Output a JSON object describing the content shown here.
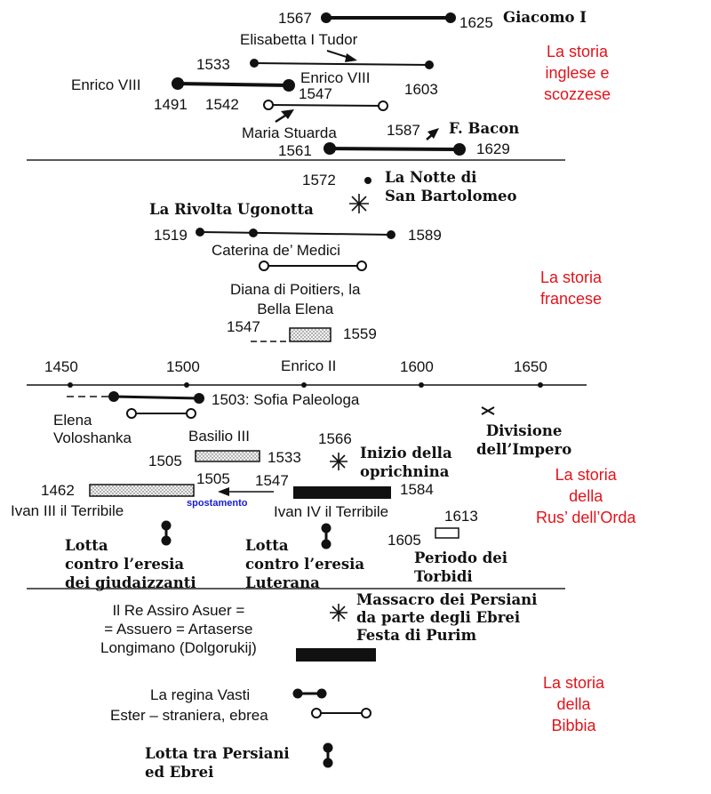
{
  "sections": {
    "english": "La storia\ninglese e\nscozzese",
    "french": "La storia\nfrancese",
    "rus": "La storia\ndella\nRus’ dell’Orda",
    "bible": "La storia\ndella\nBibbia"
  },
  "english": {
    "giacomo": {
      "start": "1567",
      "end": "1625",
      "name": "Giacomo I"
    },
    "elisabetta": {
      "name": "Elisabetta I Tudor",
      "start": "1533",
      "end": "1603"
    },
    "enrico": {
      "name_left": "Enrico VIII",
      "name_right": "Enrico VIII",
      "start": "1491",
      "end": "1547"
    },
    "maria": {
      "start": "1542",
      "name": "Maria Stuarda"
    },
    "bacon": {
      "year": "1587",
      "name": "F. Bacon",
      "start": "1561",
      "end": "1629"
    }
  },
  "french": {
    "notte": {
      "year": "1572",
      "name": "La Notte di\nSan Bartolomeo"
    },
    "rivolta": "La Rivolta Ugonotta",
    "caterina": {
      "start": "1519",
      "end": "1589",
      "name": "Caterina de’ Medici"
    },
    "diana": "Diana di Poitiers, la\nBella Elena",
    "enrico2": {
      "start": "1547",
      "end": "1559",
      "name": "Enrico II"
    }
  },
  "axis": {
    "ticks": [
      "1450",
      "1500",
      "1600",
      "1650"
    ]
  },
  "rus": {
    "sofia": "1503: Sofia Paleologa",
    "elena": "Elena\nVoloshanka",
    "divisione": "Divisione\ndell’Impero",
    "basilio": {
      "name": "Basilio III",
      "start": "1505",
      "end": "1533"
    },
    "oprichnina": {
      "year": "1566",
      "name": "Inizio della\noprichnina"
    },
    "ivan3": {
      "start": "1462",
      "end": "1505",
      "name": "Ivan III il Terribile"
    },
    "ivan4": {
      "start": "1547",
      "end": "1584",
      "name": "Ivan IV il Terribile"
    },
    "spostamento": "spostamento",
    "torbidi": {
      "start": "1605",
      "end": "1613",
      "name": "Periodo dei\nTorbidi"
    },
    "lotta1": "Lotta\ncontro l’eresia\ndei giudaizzanti",
    "lotta2": "Lotta\ncontro l’eresia\nLuterana"
  },
  "bible": {
    "assiro": "Il Re Assiro Asuer =\n= Assuero = Artaserse\nLongimano (Dolgorukij)",
    "massacro": "Massacro dei Persiani\nda parte degli Ebrei\nFesta di Purim",
    "vasti": "La regina Vasti",
    "ester": "Ester – straniera, ebrea",
    "lotta": "Lotta tra Persiani\ned Ebrei"
  }
}
